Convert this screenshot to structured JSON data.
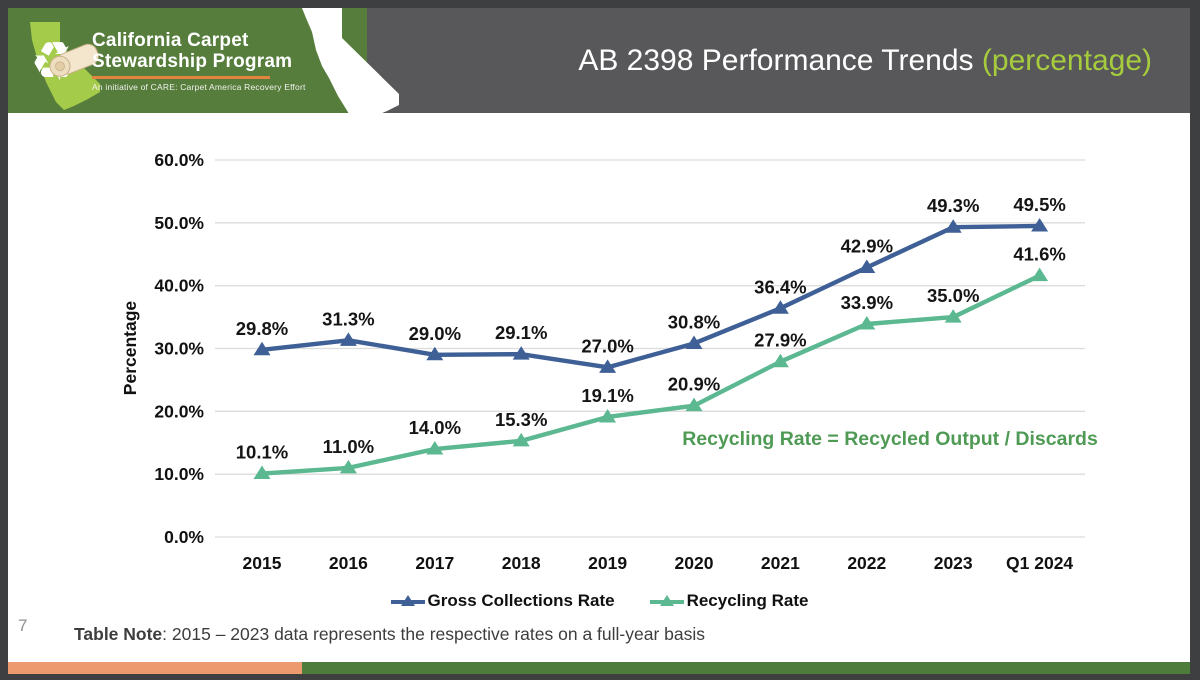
{
  "header": {
    "background": "#58585a",
    "title": "AB 2398 Performance Trends ",
    "title_highlight": "(percentage)",
    "highlight_color": "#a6cc3e"
  },
  "logo": {
    "background": "#567d3c",
    "line1": "California Carpet",
    "line2": "Stewardship Program",
    "tagline": "An initiative of CARE: Carpet America Recovery Effort",
    "divider_color": "#e2833f",
    "state_color": "#a4cb4a",
    "recycle_icon": "recycling-arrows",
    "roll_icon": "carpet-roll"
  },
  "chart_data": {
    "type": "line",
    "title": "AB 2398 Performance Trends (percentage)",
    "categories": [
      "2015",
      "2016",
      "2017",
      "2018",
      "2019",
      "2020",
      "2021",
      "2022",
      "2023",
      "Q1 2024"
    ],
    "series": [
      {
        "name": "Gross Collections Rate",
        "color": "#3f6096",
        "values": [
          29.8,
          31.3,
          29.0,
          29.1,
          27.0,
          30.8,
          36.4,
          42.9,
          49.3,
          49.5
        ]
      },
      {
        "name": "Recycling Rate",
        "color": "#5bb890",
        "values": [
          10.1,
          11.0,
          14.0,
          15.3,
          19.1,
          20.9,
          27.9,
          33.9,
          35.0,
          41.6
        ]
      }
    ],
    "xlabel": "",
    "ylabel": "Percentage",
    "ylim": [
      0,
      60
    ],
    "ytick_step": 10,
    "ytick_labels": [
      "0.0%",
      "10.0%",
      "20.0%",
      "30.0%",
      "40.0%",
      "50.0%",
      "60.0%"
    ],
    "grid": true,
    "gridline_color": "#dcdcdc",
    "marker": "triangle-up",
    "data_labels": true,
    "data_label_format": "0.0%",
    "legend_position": "bottom",
    "annotation": {
      "text": "Recycling Rate = Recycled Output / Discards",
      "color": "#4f9b55"
    }
  },
  "footer": {
    "note_label": "Table Note",
    "note_text": ": 2015 – 2023 data represents the respective rates on a full-year basis",
    "page_number": "7",
    "bar_orange": "#ec9a6e",
    "bar_green": "#4e7d3b"
  }
}
